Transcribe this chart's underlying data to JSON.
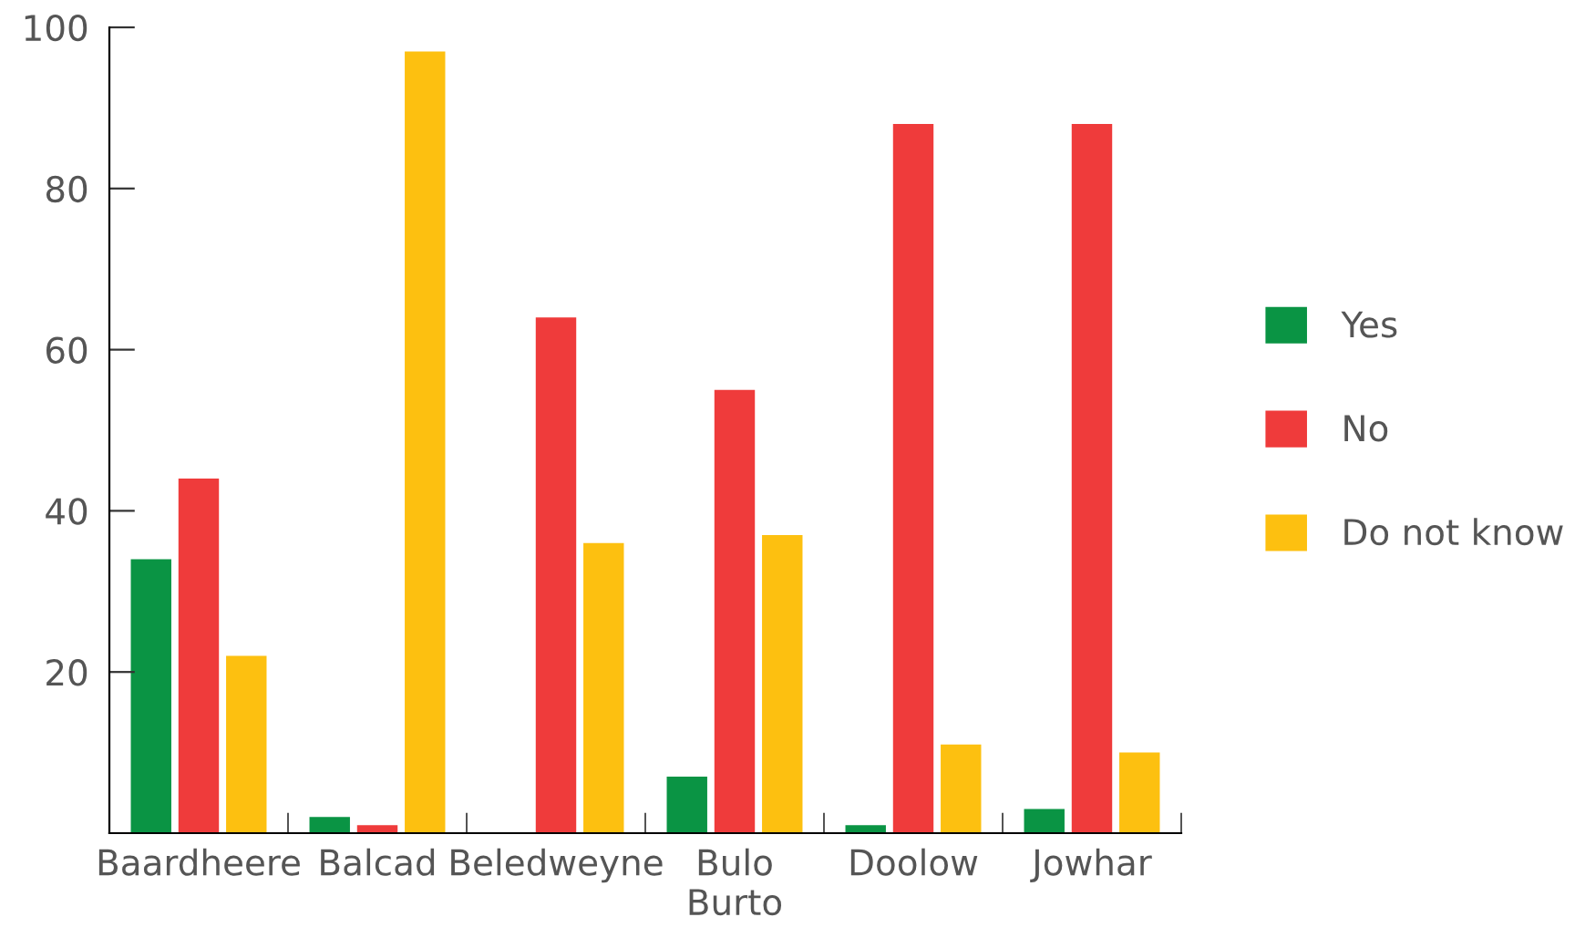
{
  "chart_data": {
    "type": "bar",
    "categories": [
      "Baardheere",
      "Balcad",
      "Beledweyne",
      "Bulo Burto",
      "Doolow",
      "Jowhar"
    ],
    "series": [
      {
        "name": "Yes",
        "color": "#0a9444",
        "values": [
          34,
          2,
          0,
          7,
          1,
          3
        ]
      },
      {
        "name": "No",
        "color": "#ef3b3b",
        "values": [
          44,
          1,
          64,
          55,
          88,
          88
        ]
      },
      {
        "name": "Do not know",
        "color": "#fdc010",
        "values": [
          22,
          97,
          36,
          37,
          11,
          10
        ]
      }
    ],
    "ylim": [
      0,
      100
    ],
    "yticks": [
      20,
      40,
      60,
      80,
      100
    ],
    "grid": false,
    "legend": "right"
  }
}
